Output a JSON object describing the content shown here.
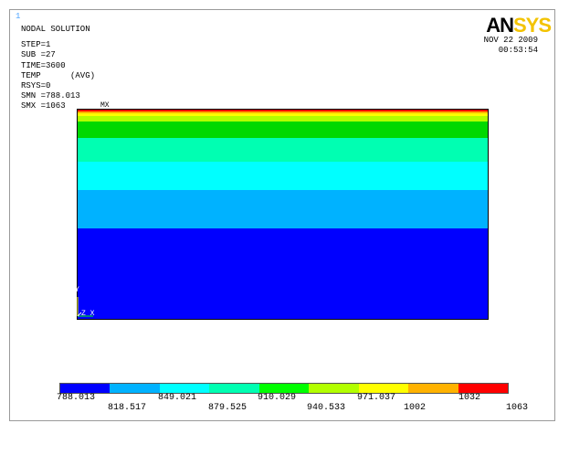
{
  "window_number": "1",
  "info": {
    "title": "NODAL SOLUTION",
    "step": "STEP=1",
    "sub": "SUB =27",
    "time": "TIME=3600",
    "temp": "TEMP      (AVG)",
    "rsys": "RSYS=0",
    "smn": "SMN =788.013",
    "smx": "SMX =1063"
  },
  "logo": {
    "left": "AN",
    "right": "SYS"
  },
  "datetime": {
    "date": "NOV 22 2009",
    "time": "00:53:54"
  },
  "markers": {
    "mx": "MX",
    "axis_y": "Y",
    "axis_zx": "Z X"
  },
  "colors": {
    "c1": "#0000ff",
    "c2": "#00b2ff",
    "c3": "#00ffff",
    "c4": "#00ffb2",
    "c5": "#00ff00",
    "c6": "#b2ff00",
    "c7": "#ffff00",
    "c8": "#ffb200",
    "c9": "#ff0000"
  },
  "legend": {
    "top_labels": [
      "788.013",
      "849.021",
      "910.029",
      "971.037",
      "1032"
    ],
    "bottom_labels": [
      "818.517",
      "879.525",
      "940.533",
      "1002",
      "1063"
    ]
  }
}
